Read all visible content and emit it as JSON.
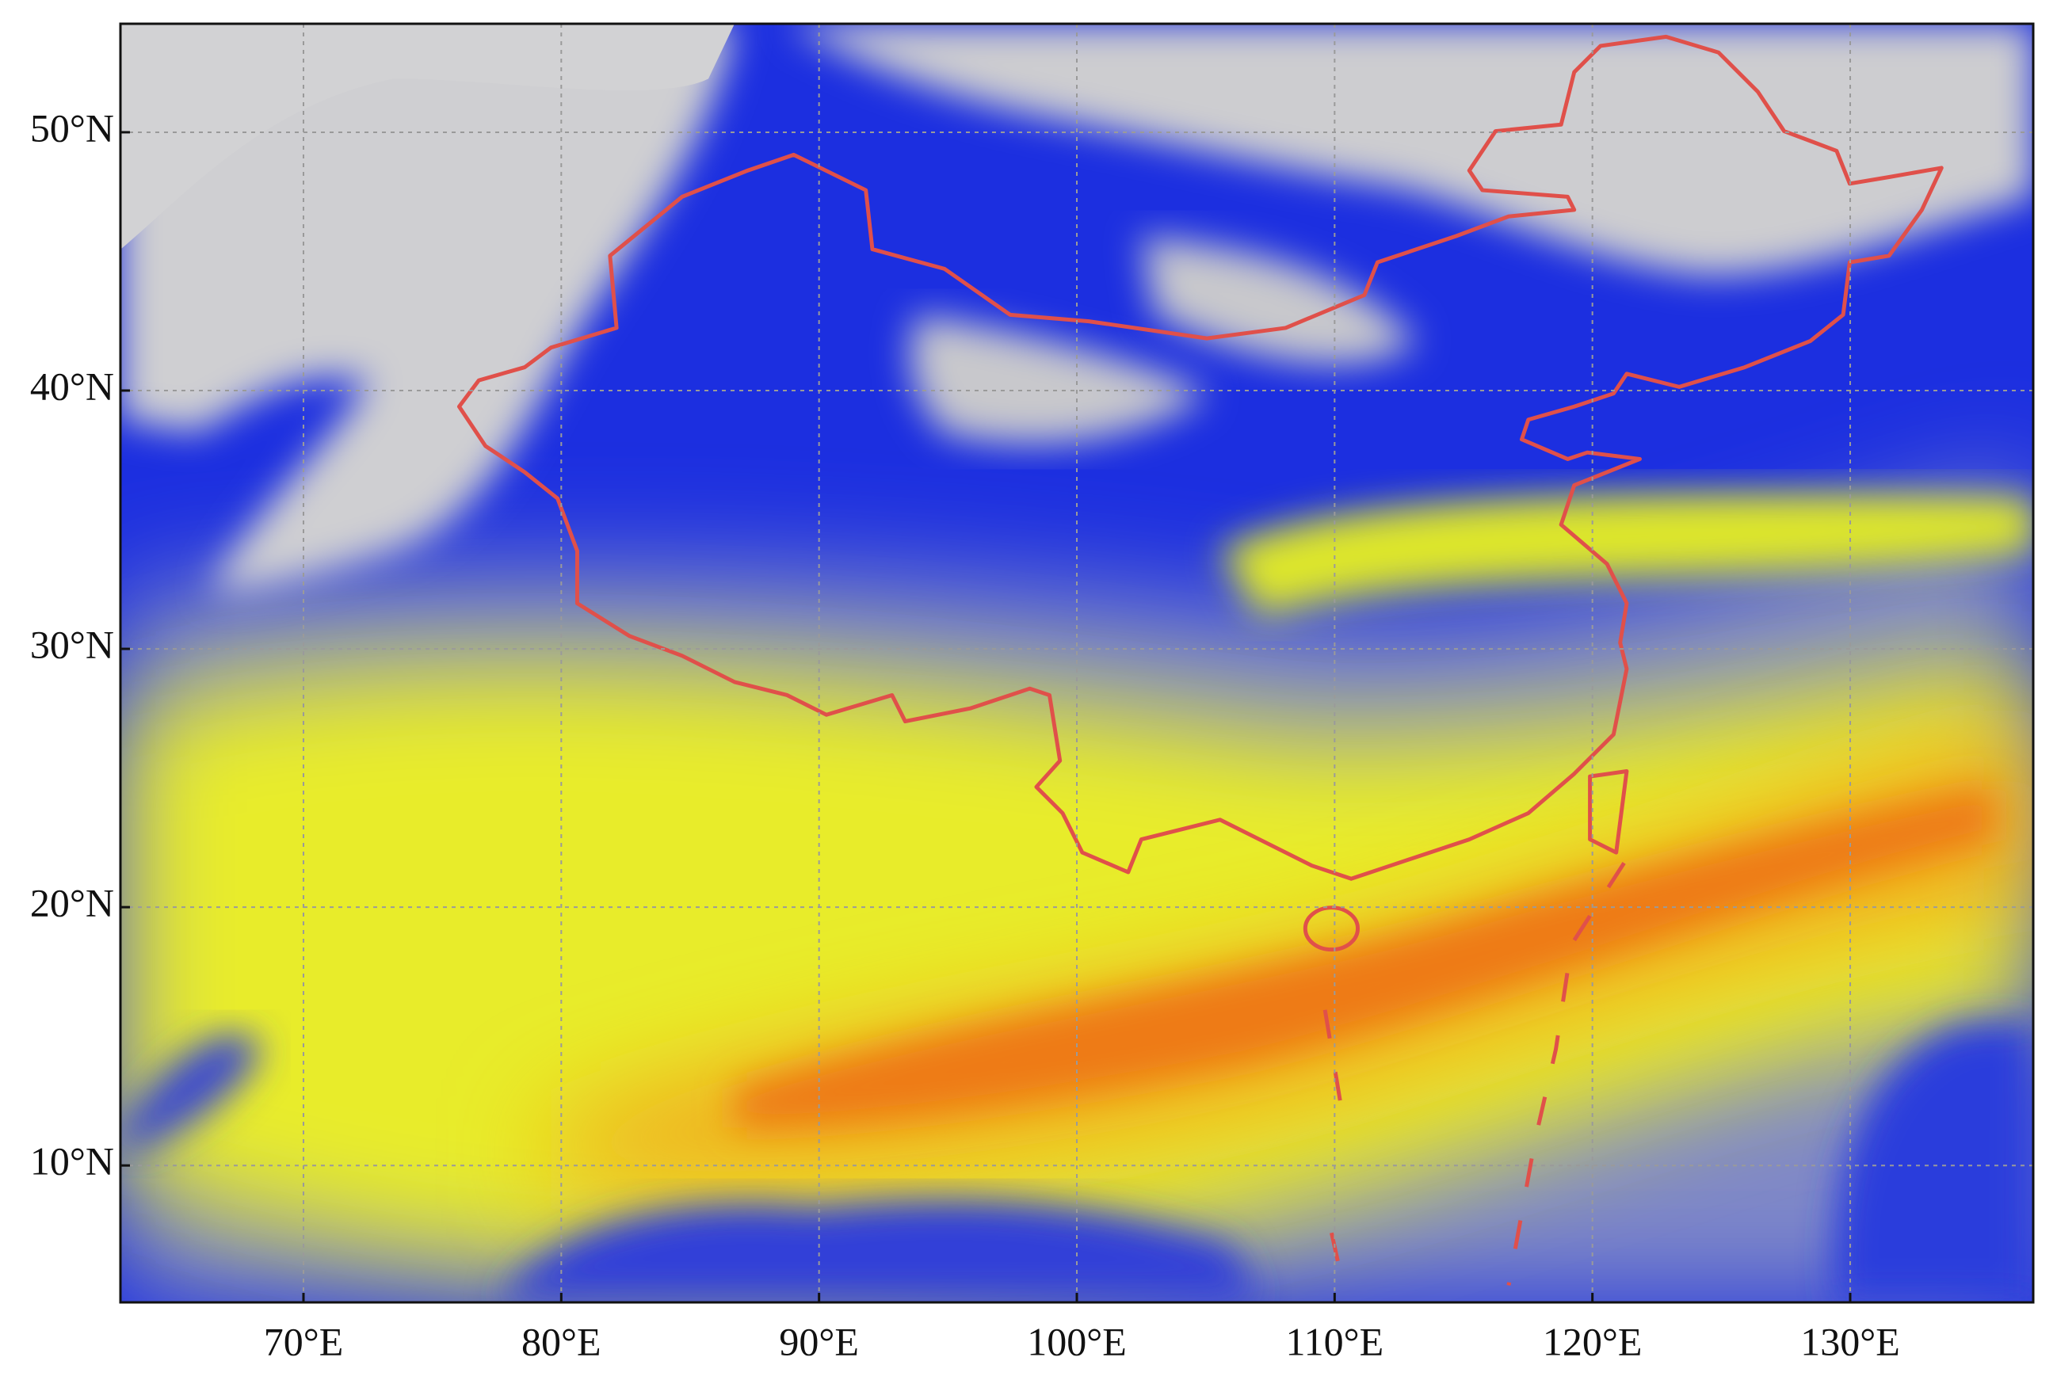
{
  "map": {
    "xlim": [
      62.9,
      137.1
    ],
    "ylim": [
      4.7,
      54.2
    ],
    "xticks": [
      {
        "value": 70,
        "label": "70°E"
      },
      {
        "value": 80,
        "label": "80°E"
      },
      {
        "value": 90,
        "label": "90°E"
      },
      {
        "value": 100,
        "label": "100°E"
      },
      {
        "value": 110,
        "label": "110°E"
      },
      {
        "value": 120,
        "label": "120°E"
      },
      {
        "value": 130,
        "label": "130°E"
      }
    ],
    "yticks": [
      {
        "value": 10,
        "label": "10°N"
      },
      {
        "value": 20,
        "label": "20°N"
      },
      {
        "value": 30,
        "label": "30°N"
      },
      {
        "value": 40,
        "label": "40°N"
      },
      {
        "value": 50,
        "label": "50°N"
      }
    ],
    "grid": true
  }
}
